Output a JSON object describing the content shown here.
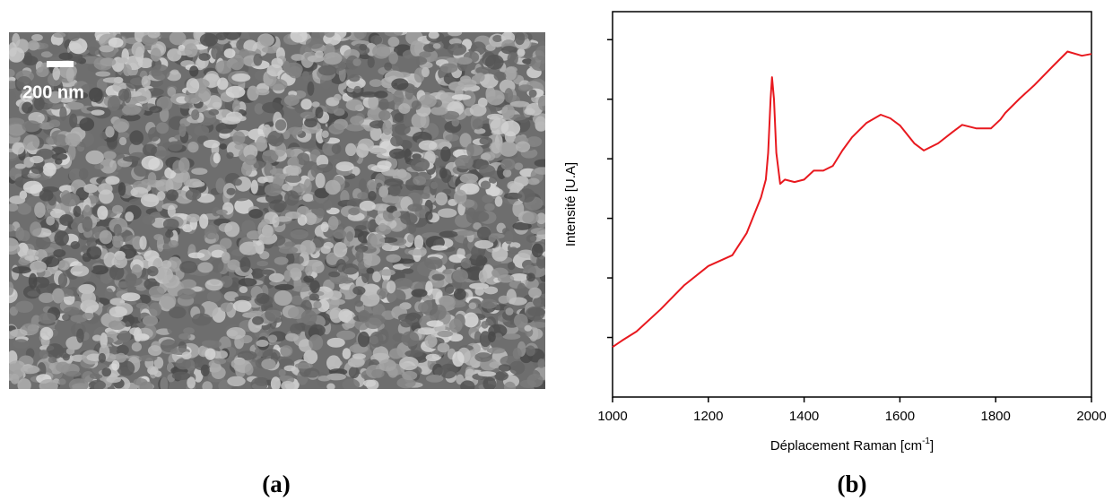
{
  "image_panel": {
    "scale_label": "200 nm",
    "caption": "(a)"
  },
  "chart_data": {
    "type": "line",
    "caption": "(b)",
    "ylabel": "Intensité [U.A]",
    "xlabel": {
      "text": "Déplacement Raman [cm",
      "sup": "-1",
      "end": "]"
    },
    "x": [
      1000,
      1020,
      1050,
      1100,
      1150,
      1200,
      1250,
      1280,
      1310,
      1320,
      1325,
      1330,
      1333,
      1337,
      1342,
      1350,
      1360,
      1380,
      1400,
      1420,
      1440,
      1460,
      1480,
      1500,
      1530,
      1560,
      1580,
      1600,
      1630,
      1650,
      1680,
      1710,
      1730,
      1760,
      1790,
      1810,
      1820,
      1850,
      1880,
      1920,
      1950,
      1980,
      2000
    ],
    "values": [
      0.84,
      0.95,
      1.1,
      1.47,
      1.88,
      2.2,
      2.38,
      2.75,
      3.35,
      3.65,
      4.1,
      5.0,
      5.37,
      5.0,
      4.1,
      3.58,
      3.65,
      3.61,
      3.65,
      3.8,
      3.8,
      3.88,
      4.14,
      4.36,
      4.6,
      4.74,
      4.68,
      4.56,
      4.26,
      4.14,
      4.26,
      4.45,
      4.57,
      4.51,
      4.51,
      4.66,
      4.77,
      5.01,
      5.23,
      5.56,
      5.8,
      5.73,
      5.76
    ],
    "color": "#e8191f",
    "xlim": [
      1000,
      2000
    ],
    "xticks": [
      1000,
      1200,
      1400,
      1600,
      1800,
      2000
    ],
    "ylim": [
      0,
      6.47
    ],
    "yticks": [
      1,
      2,
      3,
      4,
      5,
      6
    ],
    "y_tick_labels": false
  }
}
